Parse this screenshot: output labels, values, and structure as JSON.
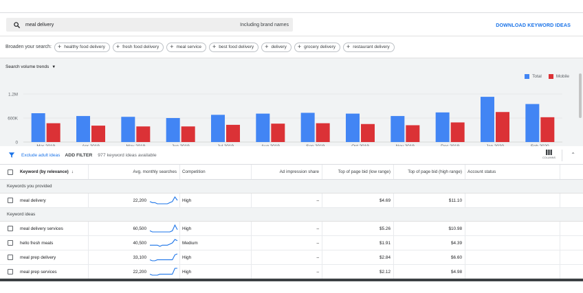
{
  "search": {
    "query": "meal delivery",
    "brand_label": "Including brand names",
    "download_label": "DOWNLOAD KEYWORD IDEAS"
  },
  "broaden": {
    "label": "Broaden your search:",
    "chips": [
      "healthy food delivery",
      "fresh food delivery",
      "meal service",
      "best food delivery",
      "delivery",
      "grocery delivery",
      "restaurant delivery"
    ]
  },
  "trends": {
    "dropdown_label": "Search volume trends",
    "legend": [
      {
        "name": "Total",
        "color": "#4285f4"
      },
      {
        "name": "Mobile",
        "color": "#db3236"
      }
    ]
  },
  "chart_data": {
    "type": "bar",
    "categories": [
      "Mar 2019",
      "Apr 2019",
      "May 2019",
      "Jun 2019",
      "Jul 2019",
      "Aug 2019",
      "Sep 2019",
      "Oct 2019",
      "Nov 2019",
      "Dec 2019",
      "Jan 2020",
      "Feb 2020"
    ],
    "series": [
      {
        "name": "Total",
        "color": "#4285f4",
        "values": [
          720000,
          650000,
          630000,
          600000,
          680000,
          710000,
          730000,
          710000,
          650000,
          740000,
          1130000,
          950000
        ]
      },
      {
        "name": "Mobile",
        "color": "#db3236",
        "values": [
          470000,
          410000,
          390000,
          390000,
          430000,
          460000,
          470000,
          450000,
          420000,
          490000,
          750000,
          620000
        ]
      }
    ],
    "yticks": [
      "1.2M",
      "600K",
      "0"
    ],
    "ylim": [
      0,
      1200000
    ]
  },
  "filter": {
    "exclude_label": "Exclude adult ideas",
    "add_filter_label": "ADD FILTER",
    "count_label": "977 keyword ideas available",
    "columns_label": "COLUMNS",
    "collapse_icon": "chevron-up-icon"
  },
  "table": {
    "headers": {
      "keyword": "Keyword (by relevance)",
      "avg": "Avg. monthly searches",
      "competition": "Competition",
      "impression": "Ad impression share",
      "low_bid": "Top of page bid (low range)",
      "high_bid": "Top of page bid (high range)",
      "status": "Account status"
    },
    "group_provided": "Keywords you provided",
    "group_ideas": "Keyword ideas",
    "provided": [
      {
        "keyword": "meal delivery",
        "avg": "22,200",
        "competition": "High",
        "impression": "–",
        "low": "$4.69",
        "high": "$11.10",
        "trend": [
          5,
          4,
          4,
          3,
          3,
          3,
          3,
          3,
          4,
          5,
          9,
          6
        ]
      }
    ],
    "ideas": [
      {
        "keyword": "meal delivery services",
        "avg": "60,500",
        "competition": "High",
        "impression": "–",
        "low": "$5.26",
        "high": "$10.98",
        "trend": [
          4,
          3,
          3,
          3,
          3,
          3,
          3,
          3,
          3,
          4,
          9,
          5
        ]
      },
      {
        "keyword": "hello fresh meals",
        "avg": "40,500",
        "competition": "Medium",
        "impression": "–",
        "low": "$1.91",
        "high": "$4.39",
        "trend": [
          3,
          3,
          3,
          3,
          2,
          3,
          3,
          3,
          4,
          5,
          8,
          7
        ]
      },
      {
        "keyword": "meal prep delivery",
        "avg": "33,100",
        "competition": "High",
        "impression": "–",
        "low": "$2.84",
        "high": "$6.60",
        "trend": [
          3,
          2,
          2,
          3,
          3,
          3,
          3,
          3,
          3,
          3,
          8,
          9
        ]
      },
      {
        "keyword": "meal prep services",
        "avg": "22,200",
        "competition": "High",
        "impression": "–",
        "low": "$2.12",
        "high": "$4.98",
        "trend": [
          3,
          2,
          2,
          2,
          3,
          3,
          3,
          3,
          3,
          3,
          9,
          9
        ]
      }
    ]
  }
}
